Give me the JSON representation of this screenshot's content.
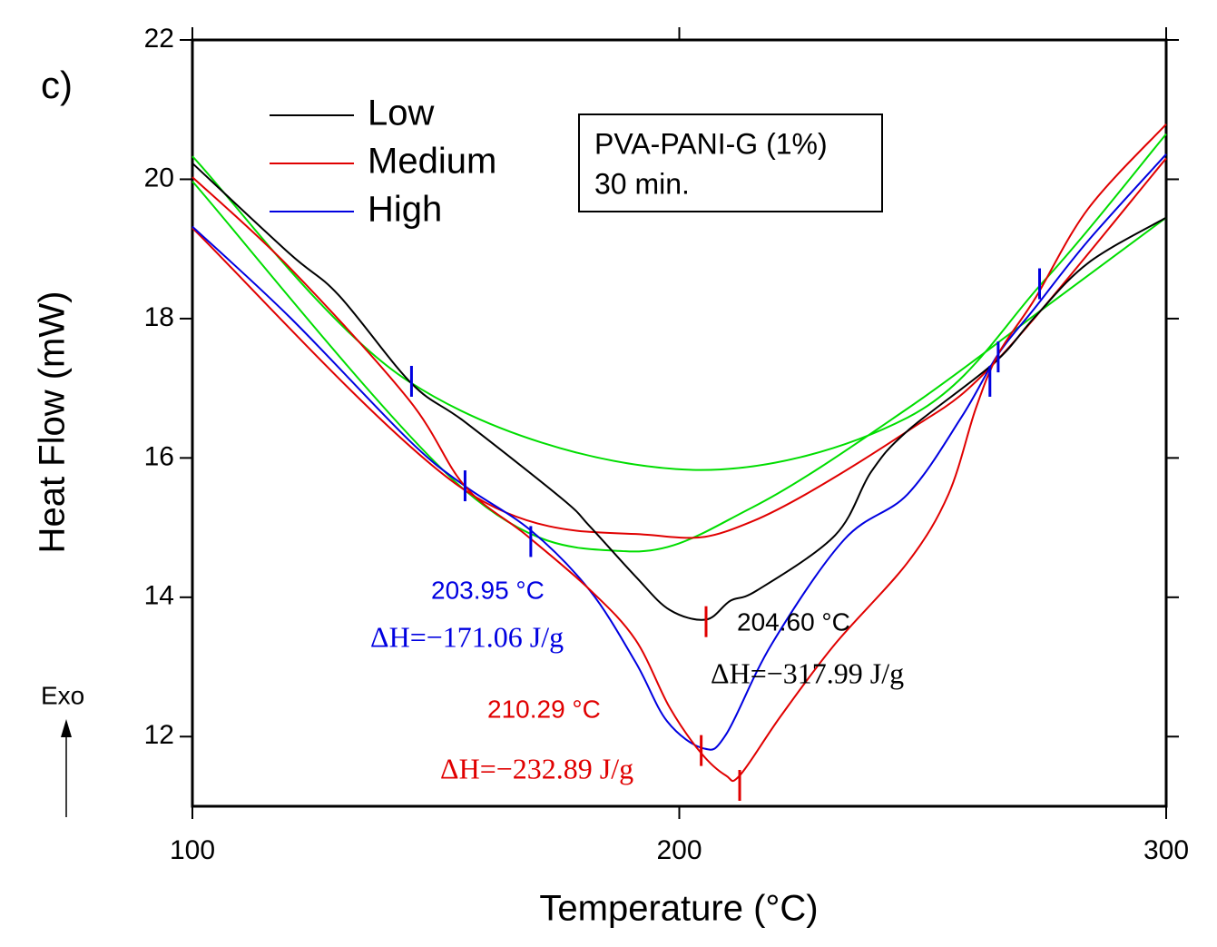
{
  "chart_data": {
    "type": "line",
    "panel_label": "c)",
    "xlabel": "Temperature (°C)",
    "ylabel": "Heat Flow (mW)",
    "exo_label": "Exo",
    "xlim": [
      100,
      300
    ],
    "xticks": [
      100,
      200,
      300
    ],
    "ylim": [
      11,
      22
    ],
    "yticks": [
      12,
      14,
      16,
      18,
      20,
      22
    ],
    "box_text": [
      "PVA-PANI-G (1%)",
      "30 min."
    ],
    "series": [
      {
        "name": "Low",
        "color": "#000000",
        "x": [
          100,
          120,
          130,
          145,
          155.9,
          176,
          181.6,
          191,
          198,
          205.5,
          210.5,
          216,
          232,
          239.4,
          246.9,
          264.6,
          273,
          284,
          300
        ],
        "values": [
          20.23,
          18.93,
          18.34,
          17.07,
          16.52,
          15.41,
          15.02,
          14.3,
          13.82,
          13.68,
          13.95,
          14.1,
          14.89,
          15.8,
          16.39,
          17.36,
          18.02,
          18.8,
          19.45
        ]
      },
      {
        "name": "Medium",
        "color": "#e00000",
        "x": [
          100,
          120,
          144.4,
          155.9,
          168.6,
          181.6,
          191,
          198,
          204.4,
          209.6,
          212.4,
          220.8,
          232,
          246.9,
          255.3,
          260.9,
          265.5,
          273,
          284,
          300
        ],
        "values": [
          20.03,
          18.73,
          16.84,
          15.6,
          14.89,
          14.11,
          13.39,
          12.42,
          11.77,
          11.44,
          11.44,
          12.29,
          13.33,
          14.5,
          15.48,
          16.71,
          17.49,
          18.28,
          19.58,
          20.79
        ]
      },
      {
        "name": "High",
        "color": "#0000e0",
        "x": [
          100,
          120,
          144.4,
          155.9,
          169.5,
          181.6,
          191,
          197.5,
          205,
          209.6,
          219,
          233.9,
          246.9,
          258,
          265.5,
          273,
          284,
          300
        ],
        "values": [
          19.32,
          18.02,
          16.26,
          15.6,
          14.96,
          14.1,
          13.07,
          12.22,
          11.83,
          12.03,
          13.33,
          14.83,
          15.48,
          16.59,
          17.49,
          18.15,
          19.12,
          20.36
        ]
      },
      {
        "color": "#e00000",
        "x": [
          100,
          155.9,
          194.7,
          215,
          247,
          265.5,
          300
        ],
        "values": [
          19.3,
          15.54,
          14.89,
          15.09,
          16.39,
          17.42,
          20.3
        ]
      },
      {
        "color": "#00dd00",
        "x": [
          100,
          144.4,
          199.3,
          246.9,
          274.9,
          300
        ],
        "values": [
          20.33,
          17.1,
          15.84,
          16.58,
          18.54,
          20.65
        ]
      },
      {
        "color": "#00dd00",
        "x": [
          100,
          155.9,
          189,
          215,
          246.9,
          274.9,
          300
        ],
        "values": [
          19.97,
          15.54,
          14.66,
          15.29,
          16.71,
          18.15,
          19.45
        ]
      }
    ],
    "markers": [
      {
        "x": 145,
        "y": 17.1,
        "color": "#0000e0"
      },
      {
        "x": 156,
        "y": 15.6,
        "color": "#0000e0"
      },
      {
        "x": 169.5,
        "y": 14.8,
        "color": "#0000e0"
      },
      {
        "x": 263.8,
        "y": 17.1,
        "color": "#0000e0"
      },
      {
        "x": 265.5,
        "y": 17.45,
        "color": "#0000e0"
      },
      {
        "x": 274,
        "y": 18.5,
        "color": "#0000e0"
      },
      {
        "x": 205.5,
        "y": 13.65,
        "color": "#e00000"
      },
      {
        "x": 204.5,
        "y": 11.8,
        "color": "#e00000"
      },
      {
        "x": 212.4,
        "y": 11.3,
        "color": "#e00000"
      }
    ],
    "annotations": [
      {
        "text": "203.95 °C",
        "color": "#0000e0"
      },
      {
        "text": "ΔH=−171.06 J/g",
        "color": "#0000e0"
      },
      {
        "text": "204.60 °C",
        "color": "#000000"
      },
      {
        "text": "ΔH=−317.99 J/g",
        "color": "#000000"
      },
      {
        "text": "210.29 °C",
        "color": "#e00000"
      },
      {
        "text": "ΔH=−232.89 J/g",
        "color": "#e00000"
      }
    ]
  }
}
